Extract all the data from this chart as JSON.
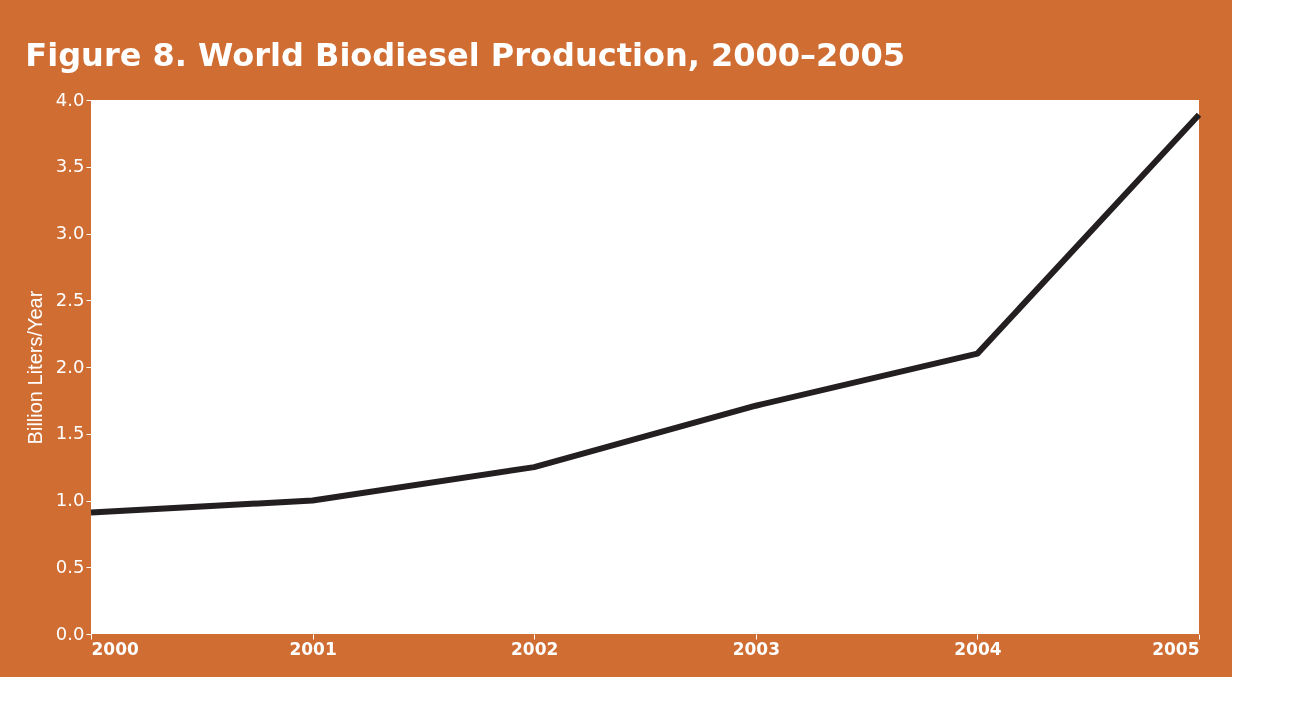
{
  "chart_data": {
    "type": "line",
    "title": "Figure 8. World Biodiesel Production, 2000–2005",
    "ylabel": "Billion Liters/Year",
    "x": [
      2000,
      2001,
      2002,
      2003,
      2004,
      2005
    ],
    "series": [
      {
        "color": "#231f20",
        "values": [
          0.91,
          1.0,
          1.25,
          1.71,
          2.1,
          3.89
        ]
      }
    ],
    "xlim": [
      2000,
      2005
    ],
    "xticks": [
      2000,
      2001,
      2002,
      2003,
      2004,
      2005
    ],
    "ylim": [
      0,
      4
    ],
    "yticks": [
      {
        "value": 0,
        "label": "0.0"
      },
      {
        "value": 0.5,
        "label": "0.5"
      },
      {
        "value": 1,
        "label": "1.0"
      },
      {
        "value": 1.5,
        "label": "1.5"
      },
      {
        "value": 2,
        "label": "2.0"
      },
      {
        "value": 2.5,
        "label": "2.5"
      },
      {
        "value": 3,
        "label": "3.0"
      },
      {
        "value": 3.5,
        "label": "3.5"
      },
      {
        "value": 4,
        "label": "4.0"
      }
    ],
    "grid": false,
    "marker": "none",
    "line_style": "solid",
    "legend": false
  }
}
